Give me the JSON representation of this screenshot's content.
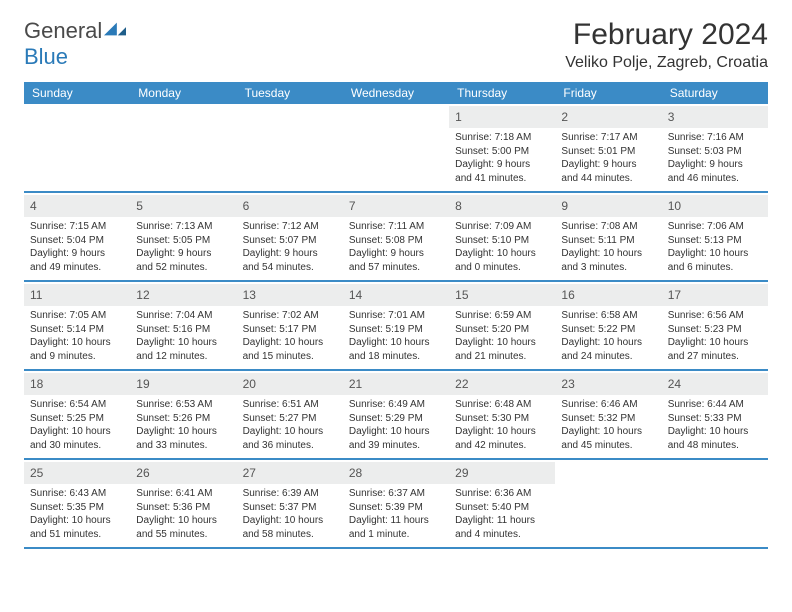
{
  "brand": {
    "name_a": "General",
    "name_b": "Blue"
  },
  "title": "February 2024",
  "location": "Veliko Polje, Zagreb, Croatia",
  "colors": {
    "header_bg": "#3b8bc6",
    "header_text": "#ffffff",
    "daynum_bg": "#eceded",
    "rule": "#3b8bc6",
    "logo_blue": "#2a7ab8",
    "body_text": "#333333"
  },
  "day_names": [
    "Sunday",
    "Monday",
    "Tuesday",
    "Wednesday",
    "Thursday",
    "Friday",
    "Saturday"
  ],
  "weeks": [
    [
      null,
      null,
      null,
      null,
      {
        "n": "1",
        "sr": "7:18 AM",
        "ss": "5:00 PM",
        "dl": "9 hours and 41 minutes."
      },
      {
        "n": "2",
        "sr": "7:17 AM",
        "ss": "5:01 PM",
        "dl": "9 hours and 44 minutes."
      },
      {
        "n": "3",
        "sr": "7:16 AM",
        "ss": "5:03 PM",
        "dl": "9 hours and 46 minutes."
      }
    ],
    [
      {
        "n": "4",
        "sr": "7:15 AM",
        "ss": "5:04 PM",
        "dl": "9 hours and 49 minutes."
      },
      {
        "n": "5",
        "sr": "7:13 AM",
        "ss": "5:05 PM",
        "dl": "9 hours and 52 minutes."
      },
      {
        "n": "6",
        "sr": "7:12 AM",
        "ss": "5:07 PM",
        "dl": "9 hours and 54 minutes."
      },
      {
        "n": "7",
        "sr": "7:11 AM",
        "ss": "5:08 PM",
        "dl": "9 hours and 57 minutes."
      },
      {
        "n": "8",
        "sr": "7:09 AM",
        "ss": "5:10 PM",
        "dl": "10 hours and 0 minutes."
      },
      {
        "n": "9",
        "sr": "7:08 AM",
        "ss": "5:11 PM",
        "dl": "10 hours and 3 minutes."
      },
      {
        "n": "10",
        "sr": "7:06 AM",
        "ss": "5:13 PM",
        "dl": "10 hours and 6 minutes."
      }
    ],
    [
      {
        "n": "11",
        "sr": "7:05 AM",
        "ss": "5:14 PM",
        "dl": "10 hours and 9 minutes."
      },
      {
        "n": "12",
        "sr": "7:04 AM",
        "ss": "5:16 PM",
        "dl": "10 hours and 12 minutes."
      },
      {
        "n": "13",
        "sr": "7:02 AM",
        "ss": "5:17 PM",
        "dl": "10 hours and 15 minutes."
      },
      {
        "n": "14",
        "sr": "7:01 AM",
        "ss": "5:19 PM",
        "dl": "10 hours and 18 minutes."
      },
      {
        "n": "15",
        "sr": "6:59 AM",
        "ss": "5:20 PM",
        "dl": "10 hours and 21 minutes."
      },
      {
        "n": "16",
        "sr": "6:58 AM",
        "ss": "5:22 PM",
        "dl": "10 hours and 24 minutes."
      },
      {
        "n": "17",
        "sr": "6:56 AM",
        "ss": "5:23 PM",
        "dl": "10 hours and 27 minutes."
      }
    ],
    [
      {
        "n": "18",
        "sr": "6:54 AM",
        "ss": "5:25 PM",
        "dl": "10 hours and 30 minutes."
      },
      {
        "n": "19",
        "sr": "6:53 AM",
        "ss": "5:26 PM",
        "dl": "10 hours and 33 minutes."
      },
      {
        "n": "20",
        "sr": "6:51 AM",
        "ss": "5:27 PM",
        "dl": "10 hours and 36 minutes."
      },
      {
        "n": "21",
        "sr": "6:49 AM",
        "ss": "5:29 PM",
        "dl": "10 hours and 39 minutes."
      },
      {
        "n": "22",
        "sr": "6:48 AM",
        "ss": "5:30 PM",
        "dl": "10 hours and 42 minutes."
      },
      {
        "n": "23",
        "sr": "6:46 AM",
        "ss": "5:32 PM",
        "dl": "10 hours and 45 minutes."
      },
      {
        "n": "24",
        "sr": "6:44 AM",
        "ss": "5:33 PM",
        "dl": "10 hours and 48 minutes."
      }
    ],
    [
      {
        "n": "25",
        "sr": "6:43 AM",
        "ss": "5:35 PM",
        "dl": "10 hours and 51 minutes."
      },
      {
        "n": "26",
        "sr": "6:41 AM",
        "ss": "5:36 PM",
        "dl": "10 hours and 55 minutes."
      },
      {
        "n": "27",
        "sr": "6:39 AM",
        "ss": "5:37 PM",
        "dl": "10 hours and 58 minutes."
      },
      {
        "n": "28",
        "sr": "6:37 AM",
        "ss": "5:39 PM",
        "dl": "11 hours and 1 minute."
      },
      {
        "n": "29",
        "sr": "6:36 AM",
        "ss": "5:40 PM",
        "dl": "11 hours and 4 minutes."
      },
      null,
      null
    ]
  ],
  "labels": {
    "sunrise": "Sunrise:",
    "sunset": "Sunset:",
    "daylight": "Daylight:"
  }
}
